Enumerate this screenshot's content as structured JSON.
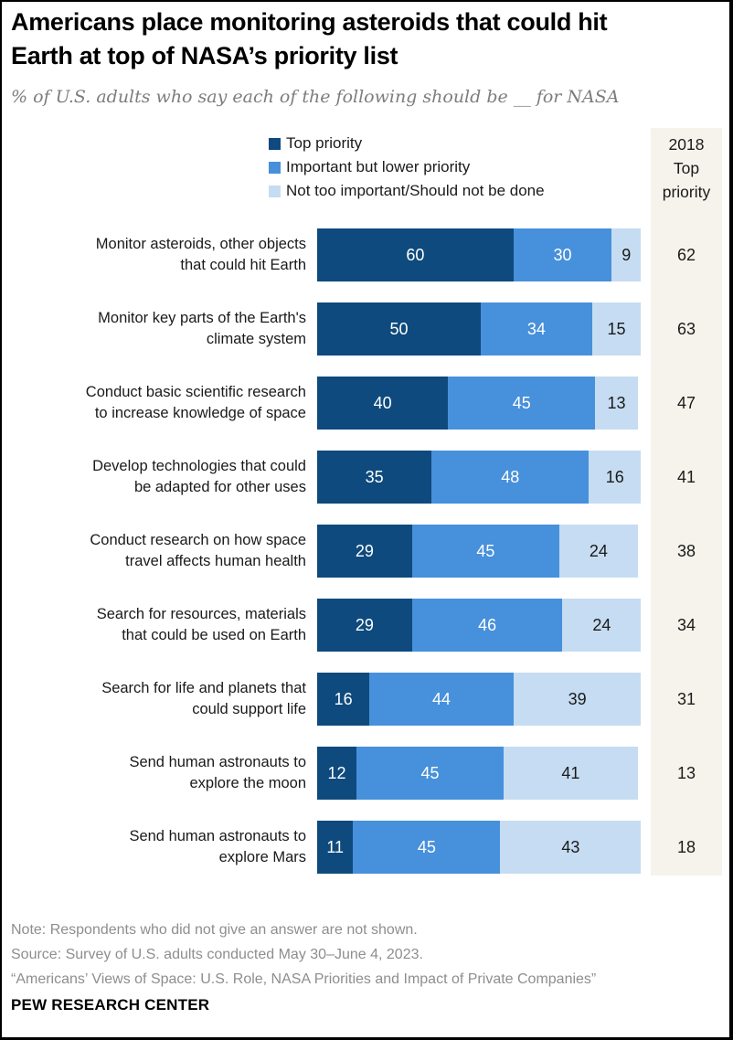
{
  "title": "Americans place monitoring asteroids that could hit\nEarth at top of NASA’s priority list",
  "subtitle": "% of U.S. adults who say each of the following should be __ for NASA",
  "colors": {
    "top_priority": "#0e4a7d",
    "important_lower": "#4790db",
    "not_important": "#c6dcf2",
    "prev_column_bg": "#f5f3ec",
    "value_on_dark": "#ffffff",
    "value_on_light": "#1a1a1a"
  },
  "legend": [
    {
      "label": "Top priority",
      "color": "#0e4a7d"
    },
    {
      "label": "Important but lower priority",
      "color": "#4790db"
    },
    {
      "label": "Not too important/Should not be done",
      "color": "#c6dcf2"
    }
  ],
  "prev_column": {
    "header": "2018\nTop\npriority",
    "values": [
      62,
      63,
      47,
      41,
      38,
      34,
      31,
      13,
      18
    ]
  },
  "chart_data": {
    "type": "bar",
    "stacked": true,
    "orientation": "horizontal",
    "unit": "%",
    "xlim": [
      0,
      100
    ],
    "legend_position": "top",
    "title": "Americans place monitoring asteroids that could hit Earth at top of NASA’s priority list",
    "xlabel": "",
    "ylabel": "",
    "categories": [
      "Monitor asteroids, other objects\nthat could hit Earth",
      "Monitor key parts of the Earth's\nclimate system",
      "Conduct basic scientific research\nto increase knowledge of space",
      "Develop technologies that could\nbe adapted for other uses",
      "Conduct research on how space\ntravel affects human health",
      "Search for resources, materials\nthat could be used on Earth",
      "Search for life and planets that\ncould support life",
      "Send human astronauts to\nexplore the moon",
      "Send human astronauts to\nexplore Mars"
    ],
    "series": [
      {
        "name": "Top priority",
        "values": [
          60,
          50,
          40,
          35,
          29,
          29,
          16,
          12,
          11
        ]
      },
      {
        "name": "Important but lower priority",
        "values": [
          30,
          34,
          45,
          48,
          45,
          46,
          44,
          45,
          45
        ]
      },
      {
        "name": "Not too important/Should not be done",
        "values": [
          9,
          15,
          13,
          16,
          24,
          24,
          39,
          41,
          43
        ]
      }
    ],
    "extra_column": {
      "header": "2018 Top priority",
      "values": [
        62,
        63,
        47,
        41,
        38,
        34,
        31,
        13,
        18
      ]
    }
  },
  "footer": {
    "note": "Note: Respondents who did not give an answer are not shown.",
    "source": "Source: Survey of U.S. adults conducted May 30–June 4, 2023.",
    "report": "“Americans’ Views of Space: U.S. Role, NASA Priorities and Impact of Private Companies”",
    "brand": "PEW RESEARCH CENTER"
  }
}
